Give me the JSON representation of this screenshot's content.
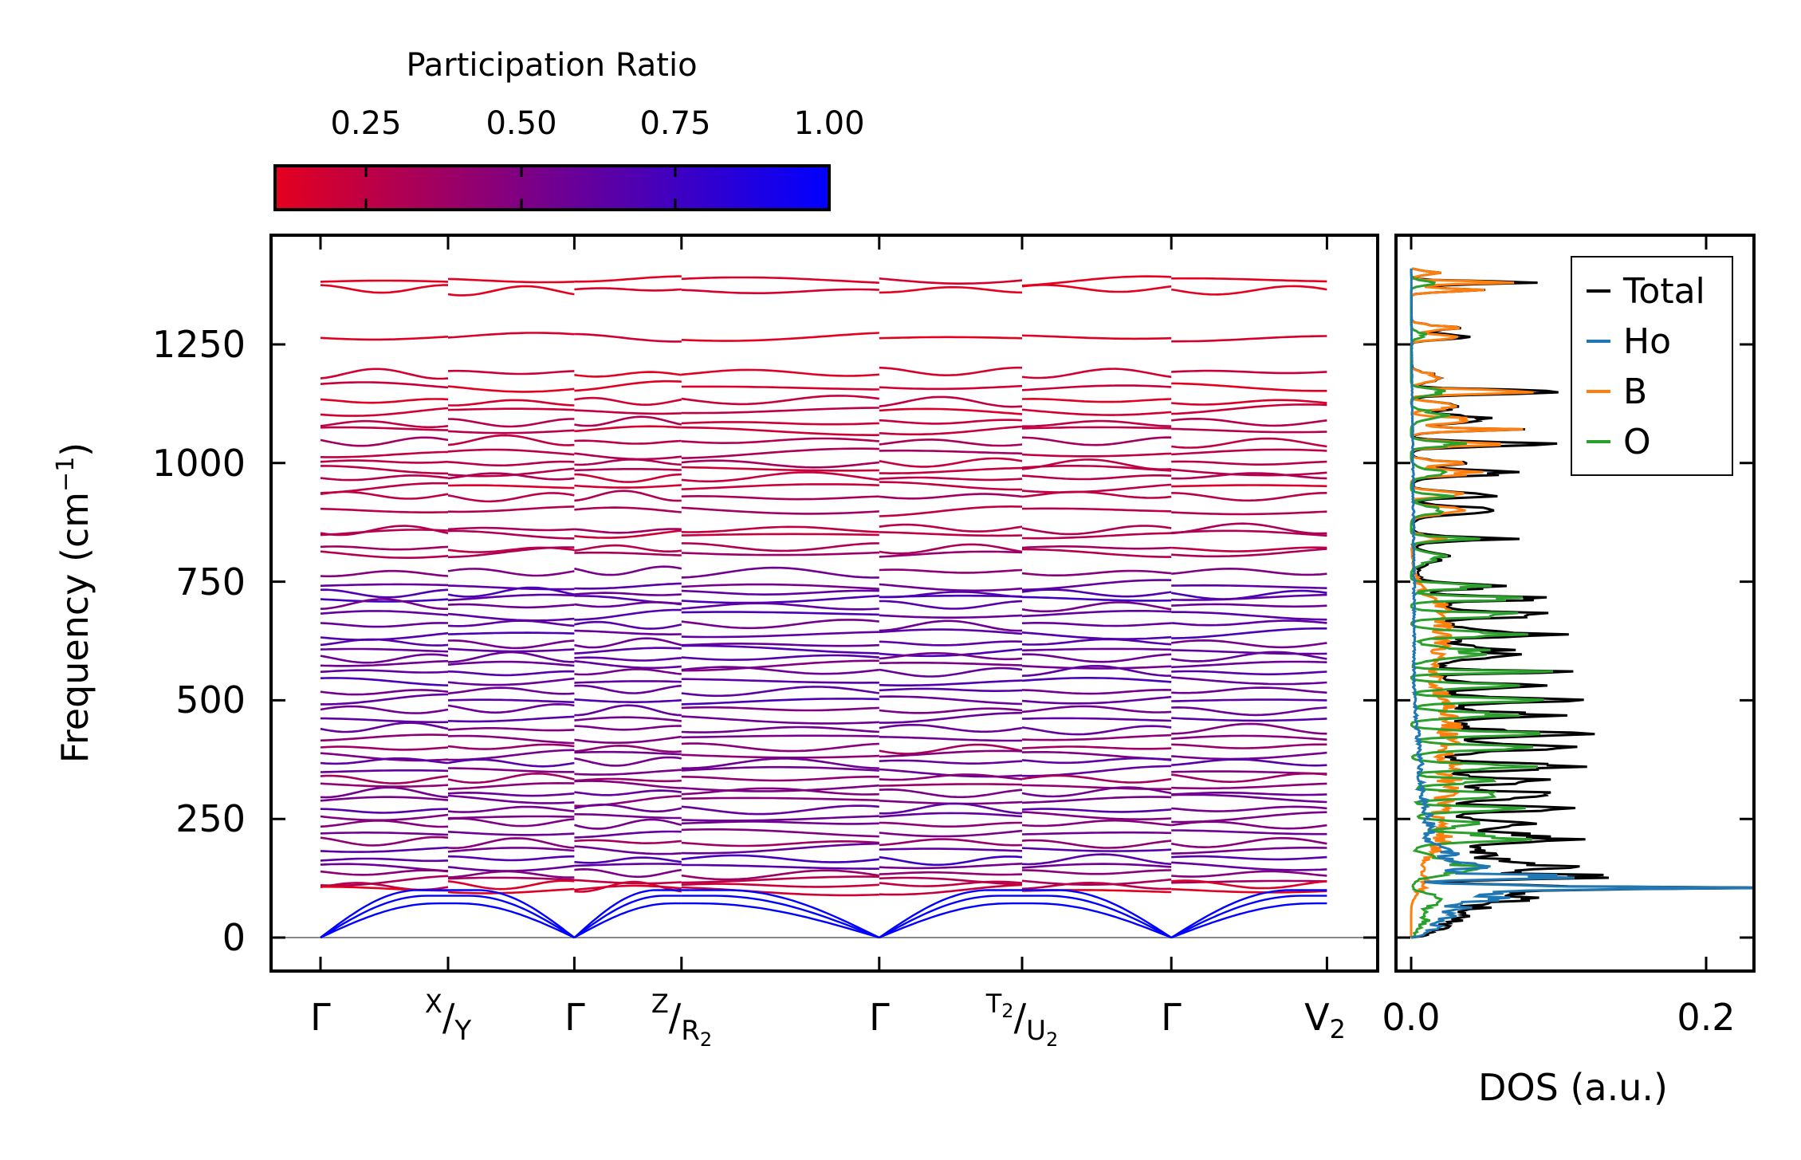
{
  "chart_data": [
    {
      "type": "line",
      "title": "",
      "kind": "phonon band structure",
      "ylabel": {
        "main": "Frequency (cm",
        "sup": "−1",
        "end": ")"
      },
      "ylim": [
        -70,
        1480
      ],
      "yticks": [
        "0",
        "250",
        "500",
        "750",
        "1000",
        "1250"
      ],
      "ytick_values": [
        0,
        250,
        500,
        750,
        1000,
        1250
      ],
      "x_tick_positions": [
        0,
        1,
        1.99,
        2.83,
        4.38,
        5.5,
        6.67,
        7.89
      ],
      "x_ticks": [
        {
          "label": "Γ"
        },
        {
          "upper": "X",
          "sep": "/",
          "lower": "Y"
        },
        {
          "label": "Γ"
        },
        {
          "upper": "Z",
          "sep": "/",
          "lower": "R",
          "lower_sub": "2"
        },
        {
          "label": "Γ"
        },
        {
          "upper": "T",
          "upper_sub": "2",
          "sep": "/",
          "lower": "U",
          "lower_sub": "2"
        },
        {
          "label": "Γ"
        },
        {
          "label": "V",
          "label_sub": "2"
        }
      ],
      "colorbar": {
        "title": "Participation Ratio",
        "range": [
          0.1,
          1.0
        ],
        "ticks": [
          "0.25",
          "0.50",
          "0.75",
          "1.00"
        ],
        "tick_values": [
          0.25,
          0.5,
          0.75,
          1.0
        ],
        "color_low": "#e4001f",
        "color_high": "#0000ff"
      },
      "acoustic_branch_end_freqs": [
        72,
        88,
        100
      ],
      "acoustic_pr": 1.0,
      "bands": [
        [
          1385,
          0.1
        ],
        [
          1365,
          0.1
        ],
        [
          1265,
          0.12
        ],
        [
          1190,
          0.15
        ],
        [
          1160,
          0.15
        ],
        [
          1130,
          0.18
        ],
        [
          1110,
          0.2
        ],
        [
          1085,
          0.25
        ],
        [
          1070,
          0.22
        ],
        [
          1045,
          0.3
        ],
        [
          1020,
          0.3
        ],
        [
          1000,
          0.28
        ],
        [
          985,
          0.25
        ],
        [
          970,
          0.25
        ],
        [
          950,
          0.2
        ],
        [
          930,
          0.3
        ],
        [
          900,
          0.3
        ],
        [
          860,
          0.3
        ],
        [
          850,
          0.25
        ],
        [
          820,
          0.3
        ],
        [
          810,
          0.35
        ],
        [
          770,
          0.5
        ],
        [
          740,
          0.6
        ],
        [
          725,
          0.65
        ],
        [
          715,
          0.7
        ],
        [
          700,
          0.6
        ],
        [
          680,
          0.65
        ],
        [
          660,
          0.6
        ],
        [
          640,
          0.65
        ],
        [
          620,
          0.6
        ],
        [
          605,
          0.65
        ],
        [
          590,
          0.6
        ],
        [
          575,
          0.55
        ],
        [
          560,
          0.6
        ],
        [
          540,
          0.65
        ],
        [
          520,
          0.6
        ],
        [
          500,
          0.65
        ],
        [
          480,
          0.55
        ],
        [
          460,
          0.6
        ],
        [
          440,
          0.55
        ],
        [
          420,
          0.5
        ],
        [
          400,
          0.4
        ],
        [
          385,
          0.5
        ],
        [
          370,
          0.6
        ],
        [
          350,
          0.55
        ],
        [
          335,
          0.4
        ],
        [
          320,
          0.45
        ],
        [
          305,
          0.55
        ],
        [
          290,
          0.5
        ],
        [
          270,
          0.6
        ],
        [
          255,
          0.55
        ],
        [
          240,
          0.5
        ],
        [
          220,
          0.55
        ],
        [
          200,
          0.4
        ],
        [
          185,
          0.6
        ],
        [
          165,
          0.7
        ],
        [
          150,
          0.6
        ],
        [
          135,
          0.45
        ],
        [
          120,
          0.3
        ],
        [
          110,
          0.2
        ],
        [
          100,
          0.15
        ]
      ]
    },
    {
      "type": "line",
      "xlabel": "DOS (a.u.)",
      "xlim": [
        -0.01,
        0.232
      ],
      "xticks": [
        "0.0",
        "0.2"
      ],
      "xtick_values": [
        0.0,
        0.2
      ],
      "ylim": [
        -70,
        1480
      ],
      "legend": {
        "placement": "top-right",
        "entries": [
          "Total",
          "Ho",
          "B",
          "O"
        ]
      },
      "series": [
        {
          "name": "Ho",
          "color": "#1f77b4",
          "peaks": [
            [
              20,
              0.01,
              15
            ],
            [
              60,
              0.03,
              20
            ],
            [
              90,
              0.05,
              10
            ],
            [
              105,
              0.17,
              4
            ],
            [
              128,
              0.1,
              5
            ],
            [
              150,
              0.05,
              8
            ],
            [
              175,
              0.02,
              15
            ],
            [
              230,
              0.01,
              40
            ],
            [
              350,
              0.005,
              80
            ],
            [
              700,
              0.002,
              300
            ]
          ]
        },
        {
          "name": "B",
          "color": "#ff7f0e",
          "peaks": [
            [
              120,
              0.01,
              20
            ],
            [
              200,
              0.015,
              30
            ],
            [
              300,
              0.02,
              60
            ],
            [
              450,
              0.025,
              80
            ],
            [
              650,
              0.02,
              60
            ],
            [
              700,
              0.01,
              10
            ],
            [
              840,
              0.02,
              6
            ],
            [
              900,
              0.03,
              8
            ],
            [
              935,
              0.04,
              5
            ],
            [
              980,
              0.04,
              6
            ],
            [
              1000,
              0.03,
              5
            ],
            [
              1040,
              0.05,
              5
            ],
            [
              1070,
              0.06,
              4
            ],
            [
              1090,
              0.05,
              5
            ],
            [
              1120,
              0.04,
              6
            ],
            [
              1150,
              0.09,
              4
            ],
            [
              1180,
              0.02,
              8
            ],
            [
              1265,
              0.04,
              4
            ],
            [
              1285,
              0.03,
              5
            ],
            [
              1365,
              0.04,
              4
            ],
            [
              1380,
              0.07,
              3
            ],
            [
              1400,
              0.02,
              4
            ]
          ]
        },
        {
          "name": "O",
          "color": "#2ca02c",
          "peaks": [
            [
              40,
              0.01,
              20
            ],
            [
              80,
              0.02,
              10
            ],
            [
              150,
              0.04,
              15
            ],
            [
              210,
              0.07,
              8
            ],
            [
              240,
              0.06,
              6
            ],
            [
              270,
              0.08,
              5
            ],
            [
              300,
              0.07,
              6
            ],
            [
              330,
              0.06,
              5
            ],
            [
              360,
              0.08,
              6
            ],
            [
              400,
              0.07,
              6
            ],
            [
              430,
              0.08,
              5
            ],
            [
              470,
              0.06,
              6
            ],
            [
              500,
              0.08,
              5
            ],
            [
              530,
              0.07,
              5
            ],
            [
              560,
              0.1,
              3
            ],
            [
              600,
              0.05,
              10
            ],
            [
              640,
              0.07,
              6
            ],
            [
              680,
              0.08,
              5
            ],
            [
              715,
              0.09,
              4
            ],
            [
              740,
              0.05,
              5
            ],
            [
              800,
              0.02,
              10
            ],
            [
              840,
              0.04,
              4
            ],
            [
              900,
              0.02,
              8
            ],
            [
              930,
              0.03,
              4
            ],
            [
              980,
              0.02,
              8
            ],
            [
              1040,
              0.03,
              5
            ],
            [
              1100,
              0.02,
              8
            ],
            [
              1150,
              0.02,
              6
            ],
            [
              1270,
              0.01,
              6
            ],
            [
              1380,
              0.015,
              5
            ]
          ]
        },
        {
          "name": "Total",
          "color": "#000000",
          "sum_of": [
            "Ho",
            "B",
            "O"
          ]
        }
      ]
    }
  ]
}
